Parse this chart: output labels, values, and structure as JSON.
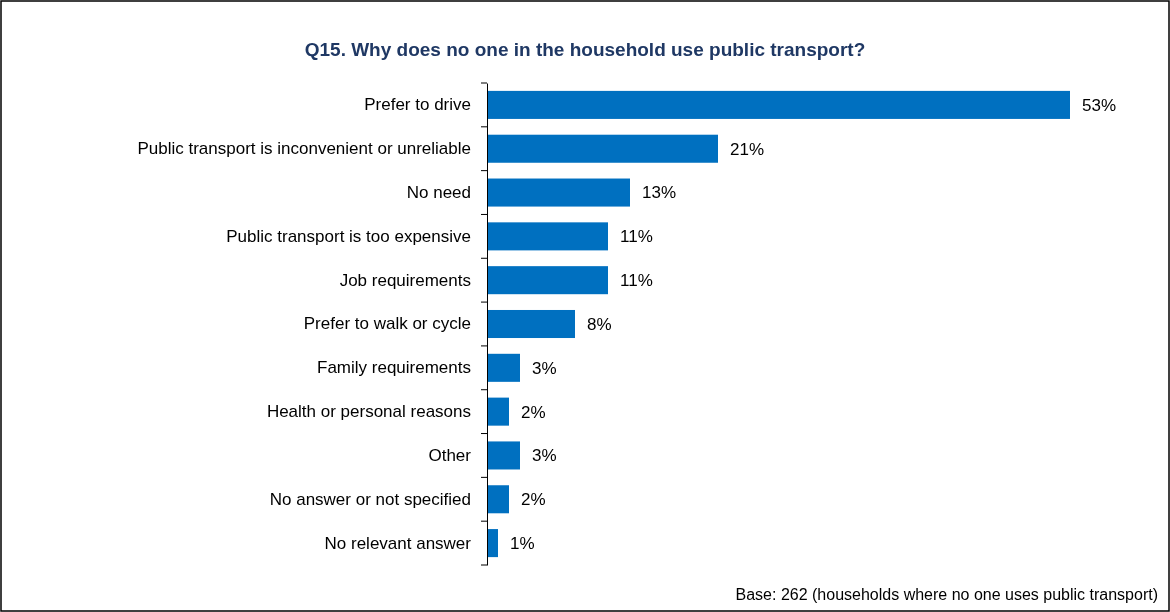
{
  "chart_data": {
    "type": "bar",
    "orientation": "horizontal",
    "title": "Q15.  Why does no one in the household use public transport?",
    "categories": [
      "Prefer to drive",
      "Public transport is inconvenient or unreliable",
      "No need",
      "Public transport is too expensive",
      "Job requirements",
      "Prefer to walk or cycle",
      "Family requirements",
      "Health or personal reasons",
      "Other",
      "No answer or not specified",
      "No relevant answer"
    ],
    "values": [
      53,
      21,
      13,
      11,
      11,
      8,
      3,
      2,
      3,
      2,
      1
    ],
    "value_labels": [
      "53%",
      "21%",
      "13%",
      "11%",
      "11%",
      "8%",
      "3%",
      "2%",
      "3%",
      "2%",
      "1%"
    ],
    "color": "#0070c0",
    "annotations": [
      "Base: 262 (households where no one uses public transport)"
    ]
  }
}
